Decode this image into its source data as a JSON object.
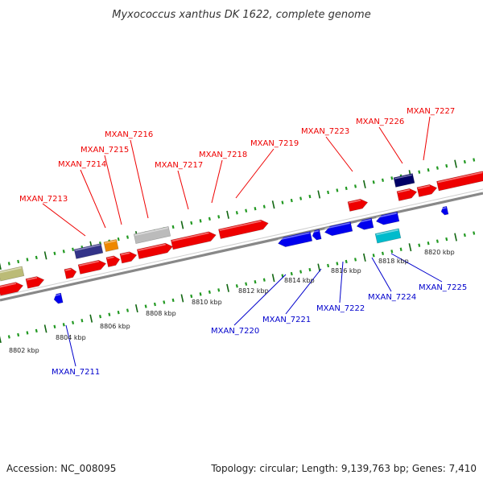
{
  "title": "Myxococcus xanthus DK 1622, complete genome",
  "footer": {
    "accession": "Accession: NC_008095",
    "summary": "Topology: circular; Length: 9,139,763 bp; Genes: 7,410"
  },
  "colors": {
    "forward_label": "#ee0000",
    "reverse_label": "#0000cc",
    "backbone": "#888888",
    "ticks": "#229922",
    "tick_major": "#116611"
  },
  "scale": {
    "labels": [
      "8802 kbp",
      "8804 kbp",
      "8806 kbp",
      "8808 kbp",
      "8810 kbp",
      "8812 kbp",
      "8814 kbp",
      "8816 kbp",
      "8818 kbp",
      "8820 kbp"
    ]
  },
  "forward_genes": [
    "MXAN_7213",
    "MXAN_7214",
    "MXAN_7215",
    "MXAN_7216",
    "MXAN_7217",
    "MXAN_7218",
    "MXAN_7219",
    "MXAN_7223",
    "MXAN_7226",
    "MXAN_7227"
  ],
  "reverse_genes": [
    "MXAN_7211",
    "MXAN_7220",
    "MXAN_7221",
    "MXAN_7222",
    "MXAN_7224",
    "MXAN_7225"
  ],
  "features": [
    {
      "name": "MXAN_7213",
      "strand": "forward",
      "color": "#ee0000",
      "shape": "arrow"
    },
    {
      "name": "MXAN_7214",
      "strand": "forward",
      "color": "#333388",
      "shape": "box"
    },
    {
      "name": "MXAN_7215",
      "strand": "forward",
      "color": "#ee8800",
      "shape": "box"
    },
    {
      "name": "MXAN_7216",
      "strand": "forward",
      "color": "#bbbbbb",
      "shape": "box"
    },
    {
      "name": "MXAN_7217",
      "strand": "forward",
      "color": "#ee0000",
      "shape": "arrow"
    },
    {
      "name": "MXAN_7218",
      "strand": "forward",
      "color": "#ee0000",
      "shape": "arrow"
    },
    {
      "name": "MXAN_7223",
      "strand": "forward",
      "color": "#ee0000",
      "shape": "arrow"
    },
    {
      "name": "MXAN_7226",
      "strand": "forward",
      "color": "#000066",
      "shape": "box"
    },
    {
      "name": "MXAN_7227",
      "strand": "forward",
      "color": "#ee0000",
      "shape": "arrow"
    },
    {
      "name": "MXAN_7211",
      "strand": "reverse",
      "color": "#0000ee",
      "shape": "arrow"
    },
    {
      "name": "MXAN_7220",
      "strand": "reverse",
      "color": "#0000ee",
      "shape": "arrow"
    },
    {
      "name": "MXAN_7222",
      "strand": "reverse",
      "color": "#0000ee",
      "shape": "arrow"
    },
    {
      "name": "MXAN_7224",
      "strand": "reverse",
      "color": "#00bbcc",
      "shape": "box"
    },
    {
      "name": "MXAN_7225",
      "strand": "reverse",
      "color": "#0000ee",
      "shape": "arrow"
    }
  ]
}
